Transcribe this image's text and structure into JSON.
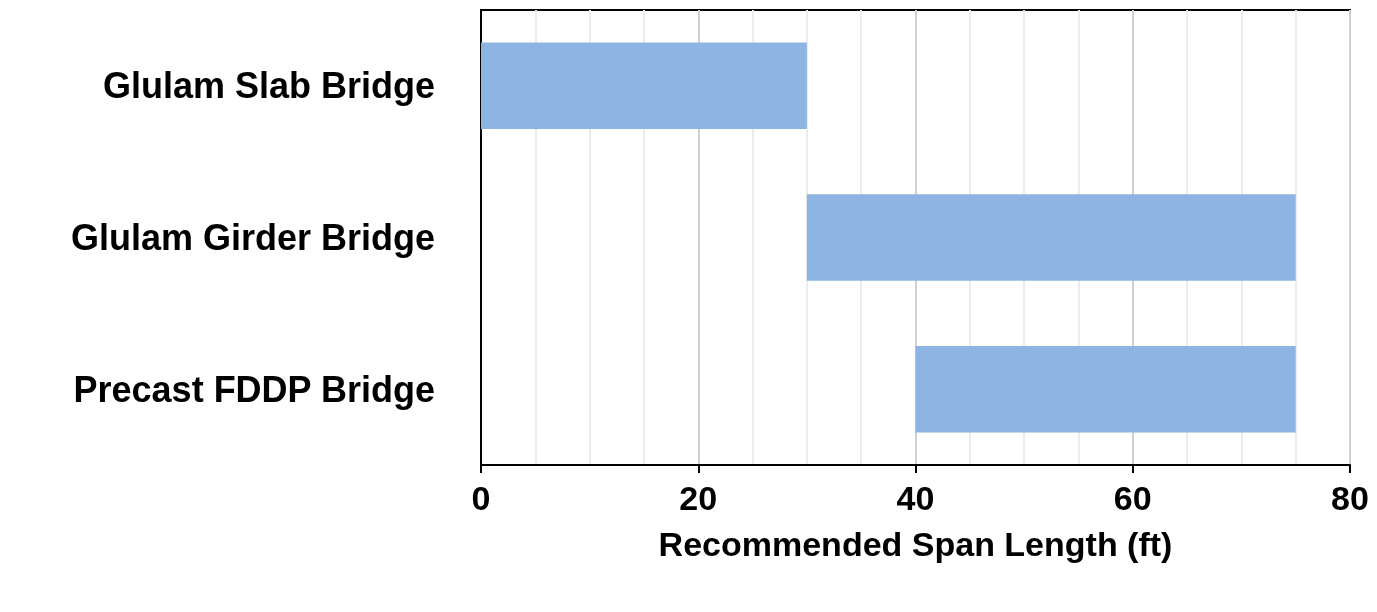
{
  "chart_data": {
    "type": "bar",
    "orientation": "horizontal",
    "xlabel": "Recommended Span Length (ft)",
    "categories": [
      "Glulam Slab Bridge",
      "Glulam Girder Bridge",
      "Precast FDDP Bridge"
    ],
    "base": [
      0,
      30,
      40
    ],
    "values": [
      30,
      45,
      35
    ],
    "color": "#8eb4e3",
    "xlim": [
      0,
      80
    ],
    "xticks": [
      0,
      {
        "value": 5,
        "label": null
      },
      {
        "value": 10,
        "label": null
      },
      {
        "value": 15,
        "label": null
      },
      20,
      {
        "value": 25,
        "label": null
      },
      {
        "value": 30,
        "label": null
      },
      {
        "value": 35,
        "label": null
      },
      40,
      {
        "value": 45,
        "label": null
      },
      {
        "value": 50,
        "label": null
      },
      {
        "value": 55,
        "label": null
      },
      60,
      {
        "value": 65,
        "label": null
      },
      {
        "value": 70,
        "label": null
      },
      {
        "value": 75,
        "label": null
      },
      80
    ],
    "grid": "x"
  }
}
